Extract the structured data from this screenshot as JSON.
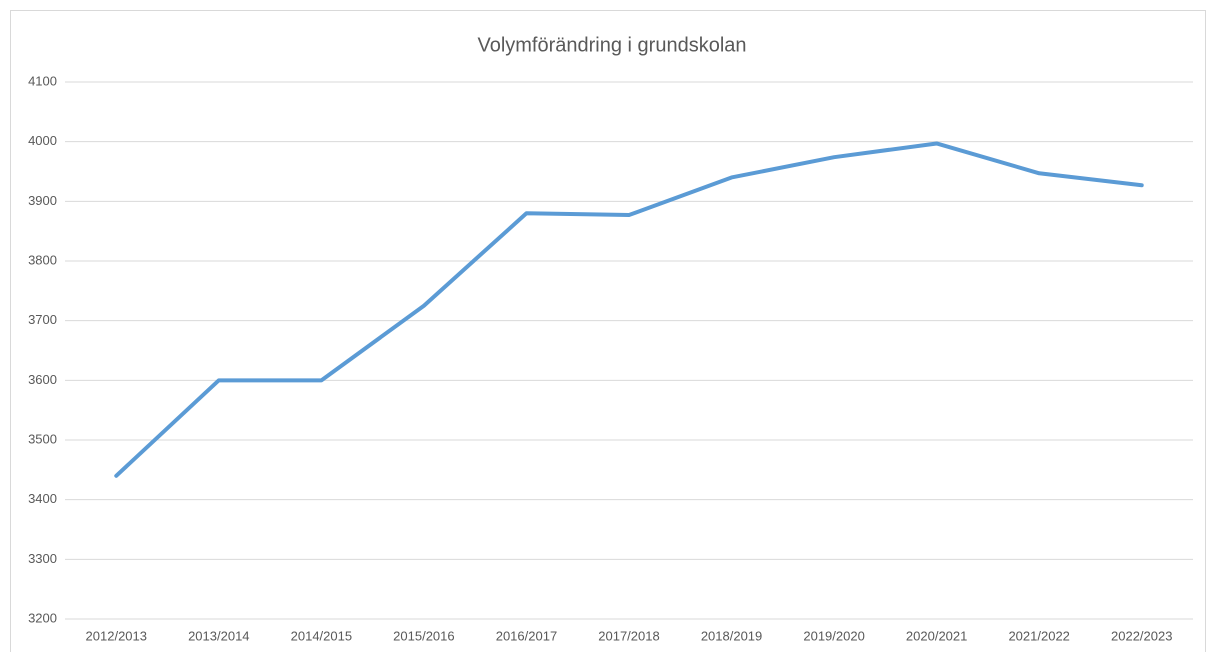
{
  "chart_data": {
    "type": "line",
    "title": "Volymförändring i grundskolan",
    "categories": [
      "2012/2013",
      "2013/2014",
      "2014/2015",
      "2015/2016",
      "2016/2017",
      "2017/2018",
      "2018/2019",
      "2019/2020",
      "2020/2021",
      "2021/2022",
      "2022/2023"
    ],
    "values": [
      3440,
      3600,
      3600,
      3725,
      3880,
      3877,
      3940,
      3974,
      3997,
      3947,
      3927
    ],
    "color": "#5b9bd5",
    "ylim": [
      3200,
      4100
    ],
    "yticks": [
      3200,
      3300,
      3400,
      3500,
      3600,
      3700,
      3800,
      3900,
      4000,
      4100
    ],
    "grid": true
  }
}
